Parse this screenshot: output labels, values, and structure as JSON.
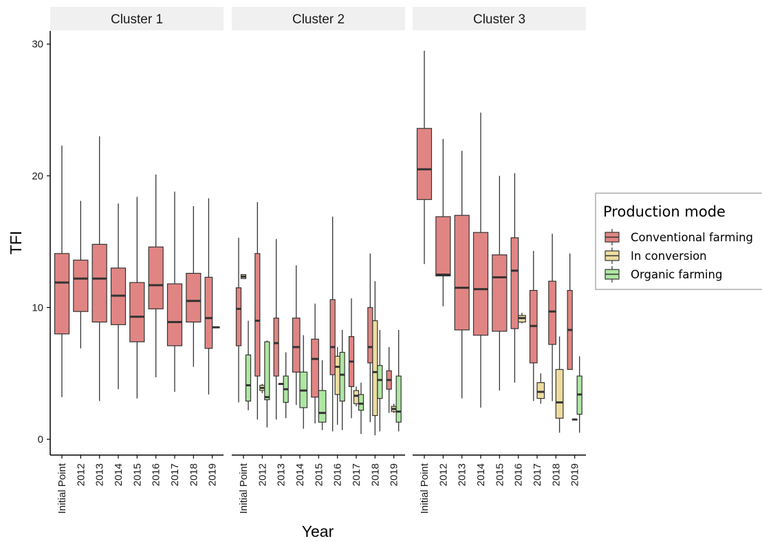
{
  "chart_data": {
    "type": "boxplot",
    "ylabel": "TFI",
    "xlabel": "Year",
    "ylim": [
      -1.2,
      31
    ],
    "yticks": [
      0,
      10,
      20,
      30
    ],
    "grid": false,
    "legend_position": "right",
    "legend_title": "Production mode",
    "categories": [
      "Initial Point",
      "2012",
      "2013",
      "2014",
      "2015",
      "2016",
      "2017",
      "2018",
      "2019"
    ],
    "series": [
      {
        "name": "Conventional farming",
        "color": "#e08583"
      },
      {
        "name": "In conversion",
        "color": "#ecdca0"
      },
      {
        "name": "Organic farming",
        "color": "#aee6a2"
      }
    ],
    "panels": [
      {
        "title": "Cluster 1",
        "boxes": [
          {
            "category": "Initial Point",
            "series": "Conventional farming",
            "lower_whisker": 3.2,
            "q1": 8.0,
            "median": 11.9,
            "q3": 14.1,
            "upper_whisker": 22.3
          },
          {
            "category": "2012",
            "series": "Conventional farming",
            "lower_whisker": 6.9,
            "q1": 9.7,
            "median": 12.2,
            "q3": 13.6,
            "upper_whisker": 18.1
          },
          {
            "category": "2013",
            "series": "Conventional farming",
            "lower_whisker": 2.9,
            "q1": 8.9,
            "median": 12.2,
            "q3": 14.8,
            "upper_whisker": 23.0
          },
          {
            "category": "2014",
            "series": "Conventional farming",
            "lower_whisker": 3.8,
            "q1": 8.7,
            "median": 10.9,
            "q3": 13.0,
            "upper_whisker": 17.9
          },
          {
            "category": "2015",
            "series": "Conventional farming",
            "lower_whisker": 3.1,
            "q1": 7.4,
            "median": 9.3,
            "q3": 11.9,
            "upper_whisker": 18.4
          },
          {
            "category": "2016",
            "series": "Conventional farming",
            "lower_whisker": 4.7,
            "q1": 9.9,
            "median": 11.7,
            "q3": 14.6,
            "upper_whisker": 20.1
          },
          {
            "category": "2017",
            "series": "Conventional farming",
            "lower_whisker": 3.6,
            "q1": 7.1,
            "median": 8.9,
            "q3": 11.8,
            "upper_whisker": 18.8
          },
          {
            "category": "2018",
            "series": "Conventional farming",
            "lower_whisker": 5.5,
            "q1": 8.9,
            "median": 10.5,
            "q3": 12.6,
            "upper_whisker": 17.7
          },
          {
            "category": "2019",
            "series": "Conventional farming",
            "lower_whisker": 3.4,
            "q1": 6.9,
            "median": 9.2,
            "q3": 12.3,
            "upper_whisker": 18.3
          },
          {
            "category": "2019",
            "series": "Organic farming",
            "lower_whisker": 8.5,
            "q1": 8.5,
            "median": 8.5,
            "q3": 8.5,
            "upper_whisker": 8.5
          }
        ]
      },
      {
        "title": "Cluster 2",
        "boxes": [
          {
            "category": "Initial Point",
            "series": "Conventional farming",
            "lower_whisker": 2.8,
            "q1": 7.1,
            "median": 9.9,
            "q3": 11.5,
            "upper_whisker": 15.3
          },
          {
            "category": "Initial Point",
            "series": "In conversion",
            "lower_whisker": 12.2,
            "q1": 12.2,
            "median": 12.35,
            "q3": 12.5,
            "upper_whisker": 12.5
          },
          {
            "category": "Initial Point",
            "series": "Organic farming",
            "lower_whisker": 2.2,
            "q1": 2.9,
            "median": 4.1,
            "q3": 6.4,
            "upper_whisker": 9.0
          },
          {
            "category": "2012",
            "series": "Conventional farming",
            "lower_whisker": 1.5,
            "q1": 4.8,
            "median": 9.0,
            "q3": 14.1,
            "upper_whisker": 18.0
          },
          {
            "category": "2012",
            "series": "In conversion",
            "lower_whisker": 3.5,
            "q1": 3.7,
            "median": 3.9,
            "q3": 4.1,
            "upper_whisker": 4.2
          },
          {
            "category": "2012",
            "series": "Organic farming",
            "lower_whisker": 0.9,
            "q1": 3.0,
            "median": 3.2,
            "q3": 7.4,
            "upper_whisker": 7.5
          },
          {
            "category": "2013",
            "series": "Conventional farming",
            "lower_whisker": 1.5,
            "q1": 4.8,
            "median": 7.3,
            "q3": 9.2,
            "upper_whisker": 15.2
          },
          {
            "category": "2013",
            "series": "In conversion",
            "lower_whisker": 4.2,
            "q1": 4.2,
            "median": 4.2,
            "q3": 4.2,
            "upper_whisker": 4.2
          },
          {
            "category": "2013",
            "series": "Organic farming",
            "lower_whisker": 1.6,
            "q1": 2.8,
            "median": 3.8,
            "q3": 4.8,
            "upper_whisker": 6.6
          },
          {
            "category": "2014",
            "series": "Conventional farming",
            "lower_whisker": 2.6,
            "q1": 5.1,
            "median": 7.0,
            "q3": 9.2,
            "upper_whisker": 13.2
          },
          {
            "category": "2014",
            "series": "Organic farming",
            "lower_whisker": 0.8,
            "q1": 2.4,
            "median": 3.7,
            "q3": 5.1,
            "upper_whisker": 7.9
          },
          {
            "category": "2015",
            "series": "Conventional farming",
            "lower_whisker": 1.2,
            "q1": 3.2,
            "median": 6.1,
            "q3": 7.6,
            "upper_whisker": 10.3
          },
          {
            "category": "2015",
            "series": "Organic farming",
            "lower_whisker": 0.7,
            "q1": 1.3,
            "median": 2.0,
            "q3": 3.7,
            "upper_whisker": 6.0
          },
          {
            "category": "2016",
            "series": "Conventional farming",
            "lower_whisker": 0.6,
            "q1": 4.9,
            "median": 7.0,
            "q3": 10.6,
            "upper_whisker": 16.9
          },
          {
            "category": "2016",
            "series": "In conversion",
            "lower_whisker": 1.1,
            "q1": 3.4,
            "median": 5.5,
            "q3": 6.3,
            "upper_whisker": 7.0
          },
          {
            "category": "2016",
            "series": "Organic farming",
            "lower_whisker": 0.7,
            "q1": 2.9,
            "median": 4.9,
            "q3": 6.6,
            "upper_whisker": 8.3
          },
          {
            "category": "2017",
            "series": "Conventional farming",
            "lower_whisker": 1.6,
            "q1": 4.0,
            "median": 5.9,
            "q3": 7.8,
            "upper_whisker": 10.7
          },
          {
            "category": "2017",
            "series": "In conversion",
            "lower_whisker": 2.5,
            "q1": 2.7,
            "median": 3.3,
            "q3": 3.7,
            "upper_whisker": 4.0
          },
          {
            "category": "2017",
            "series": "Organic farming",
            "lower_whisker": 0.4,
            "q1": 2.2,
            "median": 2.7,
            "q3": 3.4,
            "upper_whisker": 4.3
          },
          {
            "category": "2018",
            "series": "Conventional farming",
            "lower_whisker": 1.3,
            "q1": 5.8,
            "median": 7.0,
            "q3": 10.0,
            "upper_whisker": 14.1
          },
          {
            "category": "2018",
            "series": "In conversion",
            "lower_whisker": 0.3,
            "q1": 1.8,
            "median": 5.1,
            "q3": 9.0,
            "upper_whisker": 12.0
          },
          {
            "category": "2018",
            "series": "Organic farming",
            "lower_whisker": 0.6,
            "q1": 3.1,
            "median": 4.5,
            "q3": 5.6,
            "upper_whisker": 8.3
          },
          {
            "category": "2019",
            "series": "Conventional farming",
            "lower_whisker": 2.0,
            "q1": 3.8,
            "median": 4.5,
            "q3": 5.2,
            "upper_whisker": 7.0
          },
          {
            "category": "2019",
            "series": "In conversion",
            "lower_whisker": 2.0,
            "q1": 2.1,
            "median": 2.3,
            "q3": 2.5,
            "upper_whisker": 2.7
          },
          {
            "category": "2019",
            "series": "Organic farming",
            "lower_whisker": 0.6,
            "q1": 1.3,
            "median": 2.1,
            "q3": 4.8,
            "upper_whisker": 8.3
          }
        ]
      },
      {
        "title": "Cluster 3",
        "boxes": [
          {
            "category": "Initial Point",
            "series": "Conventional farming",
            "lower_whisker": 13.3,
            "q1": 18.2,
            "median": 20.5,
            "q3": 23.6,
            "upper_whisker": 29.5
          },
          {
            "category": "2012",
            "series": "Conventional farming",
            "lower_whisker": 10.1,
            "q1": 12.4,
            "median": 12.5,
            "q3": 16.9,
            "upper_whisker": 22.8
          },
          {
            "category": "2013",
            "series": "Conventional farming",
            "lower_whisker": 3.1,
            "q1": 8.3,
            "median": 11.5,
            "q3": 17.0,
            "upper_whisker": 21.9
          },
          {
            "category": "2014",
            "series": "Conventional farming",
            "lower_whisker": 2.4,
            "q1": 7.9,
            "median": 11.4,
            "q3": 15.7,
            "upper_whisker": 24.8
          },
          {
            "category": "2015",
            "series": "Conventional farming",
            "lower_whisker": 3.7,
            "q1": 8.2,
            "median": 12.3,
            "q3": 14.0,
            "upper_whisker": 20.0
          },
          {
            "category": "2016",
            "series": "Conventional farming",
            "lower_whisker": 4.3,
            "q1": 8.4,
            "median": 12.8,
            "q3": 15.3,
            "upper_whisker": 20.2
          },
          {
            "category": "2016",
            "series": "In conversion",
            "lower_whisker": 8.8,
            "q1": 8.9,
            "median": 9.2,
            "q3": 9.4,
            "upper_whisker": 9.6
          },
          {
            "category": "2017",
            "series": "Conventional farming",
            "lower_whisker": 2.9,
            "q1": 5.8,
            "median": 8.6,
            "q3": 11.3,
            "upper_whisker": 14.3
          },
          {
            "category": "2017",
            "series": "In conversion",
            "lower_whisker": 2.7,
            "q1": 3.1,
            "median": 3.6,
            "q3": 4.3,
            "upper_whisker": 5.0
          },
          {
            "category": "2018",
            "series": "Conventional farming",
            "lower_whisker": 2.9,
            "q1": 7.2,
            "median": 9.7,
            "q3": 12.0,
            "upper_whisker": 15.6
          },
          {
            "category": "2018",
            "series": "In conversion",
            "lower_whisker": 0.5,
            "q1": 1.6,
            "median": 2.8,
            "q3": 5.3,
            "upper_whisker": 7.8
          },
          {
            "category": "2019",
            "series": "Conventional farming",
            "lower_whisker": 5.3,
            "q1": 5.3,
            "median": 8.3,
            "q3": 11.3,
            "upper_whisker": 14.1
          },
          {
            "category": "2019",
            "series": "In conversion",
            "lower_whisker": 1.5,
            "q1": 1.5,
            "median": 1.5,
            "q3": 1.5,
            "upper_whisker": 1.5
          },
          {
            "category": "2019",
            "series": "Organic farming",
            "lower_whisker": 0.5,
            "q1": 1.9,
            "median": 3.4,
            "q3": 4.8,
            "upper_whisker": 6.3
          }
        ]
      }
    ]
  }
}
